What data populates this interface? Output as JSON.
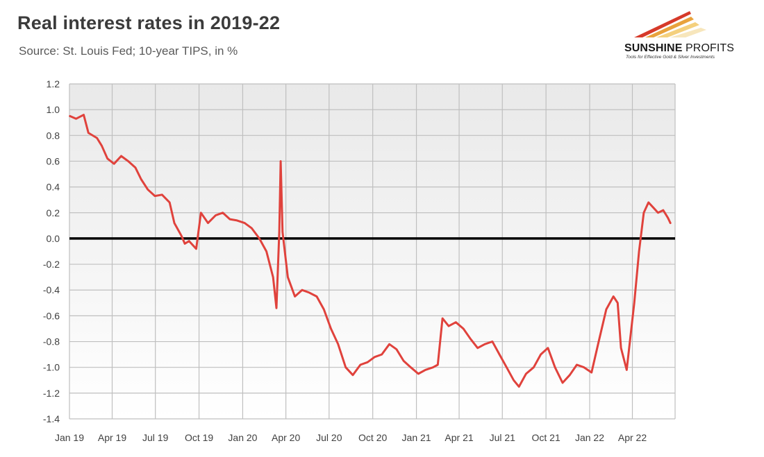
{
  "title": "Real interest rates in 2019-22",
  "subtitle": "Source: St. Louis Fed; 10-year TIPS, in %",
  "logo": {
    "name_bold": "SUNSHINE",
    "name_light": " PROFITS",
    "tagline": "Tools for Effective Gold & Silver Investments"
  },
  "colors": {
    "series": "#e0423c",
    "zero_line": "#000000",
    "grid": "#bfbfbf",
    "plot_bg_top": "#e9e9e9",
    "plot_bg_bottom": "#ffffff"
  },
  "chart_data": {
    "type": "line",
    "title": "Real interest rates in 2019-22",
    "subtitle": "Source: St. Louis Fed; 10-year TIPS, in %",
    "xlabel": "",
    "ylabel": "",
    "ylim": [
      -1.4,
      1.2
    ],
    "yticks": [
      1.2,
      1.0,
      0.8,
      0.6,
      0.4,
      0.2,
      0.0,
      -0.2,
      -0.4,
      -0.6,
      -0.8,
      -1.0,
      -1.2,
      -1.4
    ],
    "ytick_labels": [
      "1.2",
      "1.0",
      "0.8",
      "0.6",
      "0.4",
      "0.2",
      "0.0",
      "-0.2",
      "-0.4",
      "-0.6",
      "-0.8",
      "-1.0",
      "-1.2",
      "-1.4"
    ],
    "xlim": [
      "2019-01-01",
      "2022-06-30"
    ],
    "xticks": [
      "2019-01-01",
      "2019-04-01",
      "2019-07-01",
      "2019-10-01",
      "2020-01-01",
      "2020-04-01",
      "2020-07-01",
      "2020-10-01",
      "2021-01-01",
      "2021-04-01",
      "2021-07-01",
      "2021-10-01",
      "2022-01-01",
      "2022-04-01"
    ],
    "xtick_labels": [
      "Jan 19",
      "Apr 19",
      "Jul 19",
      "Oct 19",
      "Jan 20",
      "Apr 20",
      "Jul 20",
      "Oct 20",
      "Jan 21",
      "Apr 21",
      "Jul 21",
      "Oct 21",
      "Jan 22",
      "Apr 22"
    ],
    "grid": true,
    "reference_line": 0.0,
    "series": [
      {
        "x": [
          "2019-01-02",
          "2019-01-15",
          "2019-01-31",
          "2019-02-10",
          "2019-02-28",
          "2019-03-10",
          "2019-03-22",
          "2019-04-05",
          "2019-04-20",
          "2019-05-05",
          "2019-05-20",
          "2019-06-01",
          "2019-06-15",
          "2019-06-30",
          "2019-07-15",
          "2019-07-31",
          "2019-08-10",
          "2019-08-25",
          "2019-09-01",
          "2019-09-10",
          "2019-09-25",
          "2019-10-05",
          "2019-10-20",
          "2019-11-05",
          "2019-11-20",
          "2019-12-05",
          "2019-12-20",
          "2020-01-05",
          "2020-01-20",
          "2020-02-05",
          "2020-02-20",
          "2020-03-05",
          "2020-03-12",
          "2020-03-18",
          "2020-03-21",
          "2020-03-25",
          "2020-04-05",
          "2020-04-20",
          "2020-05-05",
          "2020-05-20",
          "2020-06-05",
          "2020-06-20",
          "2020-07-05",
          "2020-07-20",
          "2020-08-05",
          "2020-08-20",
          "2020-09-05",
          "2020-09-20",
          "2020-10-05",
          "2020-10-20",
          "2020-11-05",
          "2020-11-20",
          "2020-12-05",
          "2020-12-20",
          "2021-01-05",
          "2021-01-20",
          "2021-02-05",
          "2021-02-15",
          "2021-02-25",
          "2021-03-10",
          "2021-03-25",
          "2021-04-10",
          "2021-04-25",
          "2021-05-10",
          "2021-05-25",
          "2021-06-10",
          "2021-06-25",
          "2021-07-10",
          "2021-07-25",
          "2021-08-05",
          "2021-08-20",
          "2021-09-05",
          "2021-09-20",
          "2021-10-05",
          "2021-10-20",
          "2021-11-05",
          "2021-11-20",
          "2021-12-05",
          "2021-12-20",
          "2022-01-05",
          "2022-01-20",
          "2022-02-05",
          "2022-02-20",
          "2022-03-01",
          "2022-03-08",
          "2022-03-20",
          "2022-04-05",
          "2022-04-15",
          "2022-04-25",
          "2022-05-05",
          "2022-05-15",
          "2022-05-25",
          "2022-06-05",
          "2022-06-15",
          "2022-06-20"
        ],
        "y": [
          0.95,
          0.93,
          0.96,
          0.82,
          0.78,
          0.72,
          0.62,
          0.58,
          0.64,
          0.6,
          0.55,
          0.46,
          0.38,
          0.33,
          0.34,
          0.28,
          0.12,
          0.02,
          -0.04,
          -0.02,
          -0.08,
          0.2,
          0.12,
          0.18,
          0.2,
          0.15,
          0.14,
          0.12,
          0.08,
          0.0,
          -0.1,
          -0.3,
          -0.54,
          0.05,
          0.6,
          0.05,
          -0.3,
          -0.45,
          -0.4,
          -0.42,
          -0.45,
          -0.55,
          -0.7,
          -0.82,
          -1.0,
          -1.06,
          -0.98,
          -0.96,
          -0.92,
          -0.9,
          -0.82,
          -0.86,
          -0.95,
          -1.0,
          -1.05,
          -1.02,
          -1.0,
          -0.98,
          -0.62,
          -0.68,
          -0.65,
          -0.7,
          -0.78,
          -0.85,
          -0.82,
          -0.8,
          -0.9,
          -1.0,
          -1.1,
          -1.15,
          -1.05,
          -1.0,
          -0.9,
          -0.85,
          -1.0,
          -1.12,
          -1.06,
          -0.98,
          -1.0,
          -1.04,
          -0.8,
          -0.55,
          -0.45,
          -0.5,
          -0.85,
          -1.02,
          -0.5,
          -0.1,
          0.2,
          0.28,
          0.24,
          0.2,
          0.22,
          0.16,
          0.12
        ]
      }
    ]
  }
}
